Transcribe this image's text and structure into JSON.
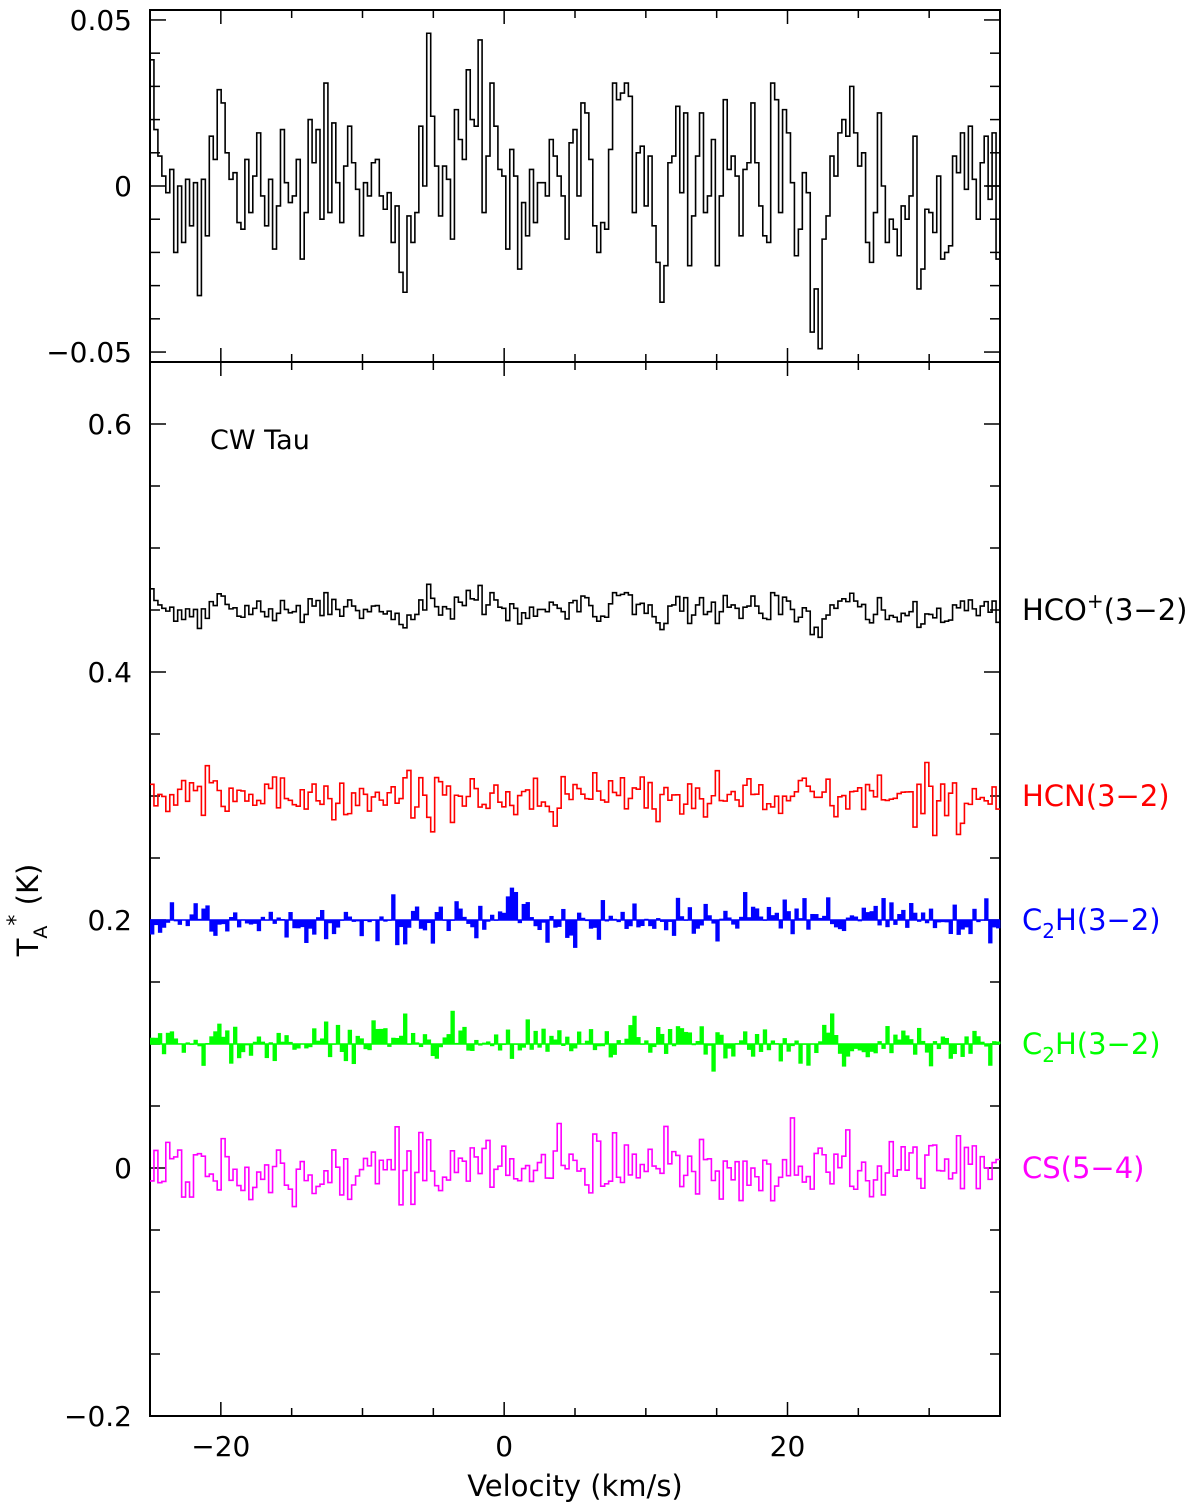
{
  "chart_data": [
    {
      "type": "line",
      "panel": "top",
      "style": "step",
      "xlim": [
        -25,
        35
      ],
      "ylim": [
        -0.053,
        0.053
      ],
      "y_ticks": [
        -0.05,
        0,
        0.05
      ],
      "y_tick_labels": [
        "−0.05",
        "0",
        "0.05"
      ],
      "series": [
        {
          "color": "#000000",
          "values": [
            0.038,
            0.017,
            0.009,
            0.003,
            -0.002,
            0.005,
            -0.02,
            0.0,
            -0.017,
            0.002,
            -0.012,
            0.001,
            -0.033,
            0.002,
            -0.015,
            0.015,
            0.008,
            0.029,
            0.025,
            0.01,
            0.002,
            0.004,
            -0.011,
            -0.013,
            0.008,
            -0.008,
            0.003,
            0.016,
            -0.003,
            -0.012,
            0.002,
            -0.019,
            -0.006,
            0.017,
            0.001,
            -0.005,
            -0.003,
            0.008,
            -0.022,
            -0.008,
            0.02,
            0.007,
            0.017,
            -0.01,
            0.031,
            -0.008,
            0.019,
            0.001,
            -0.011,
            0.006,
            0.018,
            0.007,
            -0.001,
            -0.015,
            0.001,
            -0.003,
            0.007,
            0.008,
            -0.003,
            -0.007,
            -0.002,
            -0.017,
            -0.006,
            -0.026,
            -0.032,
            -0.009,
            -0.017,
            -0.008,
            0.018,
            0.0,
            0.046,
            0.021,
            0.006,
            -0.009,
            0.006,
            0.002,
            -0.016,
            0.023,
            0.014,
            0.008,
            0.035,
            0.02,
            0.018,
            0.044,
            -0.008,
            0.009,
            0.031,
            0.018,
            0.005,
            0.003,
            -0.019,
            0.011,
            0.003,
            -0.025,
            -0.005,
            -0.015,
            0.005,
            -0.011,
            0.001,
            0.001,
            -0.003,
            0.014,
            0.009,
            0.003,
            -0.003,
            -0.016,
            0.013,
            0.017,
            -0.003,
            0.025,
            0.022,
            0.008,
            -0.012,
            -0.02,
            -0.011,
            -0.013,
            0.011,
            0.031,
            0.026,
            0.028,
            0.031,
            0.027,
            -0.008,
            0.01,
            0.012,
            -0.006,
            0.009,
            -0.012,
            -0.023,
            -0.035,
            -0.024,
            0.007,
            0.009,
            0.024,
            -0.002,
            0.022,
            -0.024,
            -0.009,
            0.009,
            0.022,
            -0.008,
            -0.003,
            0.014,
            -0.024,
            -0.003,
            0.026,
            0.005,
            0.009,
            0.003,
            -0.015,
            0.005,
            0.007,
            0.025,
            0.007,
            -0.006,
            -0.015,
            -0.017,
            0.031,
            0.026,
            -0.008,
            0.023,
            0.016,
            0.001,
            -0.021,
            -0.013,
            0.004,
            -0.002,
            -0.044,
            -0.031,
            -0.049,
            -0.016,
            -0.009,
            0.009,
            0.003,
            0.016,
            0.02,
            0.015,
            0.03,
            0.016,
            0.006,
            0.01,
            -0.017,
            -0.023,
            -0.008,
            0.022,
            0.0,
            -0.017,
            -0.01,
            -0.013,
            -0.021,
            -0.006,
            -0.01,
            -0.003,
            0.015,
            -0.031,
            -0.025,
            -0.007,
            -0.008,
            -0.014,
            0.003,
            -0.022,
            -0.02,
            -0.018,
            0.009,
            0.004,
            0.016,
            -0.001,
            0.018,
            0.002,
            -0.01,
            0.007,
            0.015,
            -0.004,
            0.016,
            -0.022
          ]
        }
      ]
    },
    {
      "type": "line",
      "panel": "bottom",
      "style": "step",
      "title": "",
      "xlabel": "Velocity (km/s)",
      "ylabel": "T_A^* (K)",
      "xlim": [
        -25,
        35
      ],
      "ylim": [
        -0.2,
        0.65
      ],
      "x_ticks": [
        -20,
        0,
        20
      ],
      "x_tick_labels": [
        "−20",
        "0",
        "20"
      ],
      "y_ticks": [
        -0.2,
        0,
        0.2,
        0.4,
        0.6
      ],
      "y_tick_labels": [
        "−0.2",
        "0",
        "0.2",
        "0.4",
        "0.6"
      ],
      "annotation": "CW Tau",
      "series": [
        {
          "name": "HCO+(3-2)",
          "color": "#000000",
          "offset": 0.45,
          "amplitude": 0.0185,
          "filled": false
        },
        {
          "name": "HCN(3-2)",
          "color": "#ff0000",
          "offset": 0.3,
          "amplitude": 0.016,
          "filled": false
        },
        {
          "name": "C2H(3-2)",
          "color": "#0000ff",
          "offset": 0.2,
          "amplitude": 0.017,
          "filled": true
        },
        {
          "name": "C2H(3-2)",
          "color": "#00ff00",
          "offset": 0.1,
          "amplitude": 0.016,
          "filled": true
        },
        {
          "name": "CS(5-4)",
          "color": "#ff00ff",
          "offset": 0.0,
          "amplitude": 0.023,
          "filled": false
        }
      ],
      "series_labels": [
        {
          "main": "HCO",
          "sup": "+",
          "rest": "(3−2)",
          "color": "#000000"
        },
        {
          "main": "HCN(3−2)",
          "color": "#ff0000"
        },
        {
          "main": "C",
          "sub": "2",
          "rest": "H(3−2)",
          "color": "#0000ff"
        },
        {
          "main": "C",
          "sub": "2",
          "rest": "H(3−2)",
          "color": "#00ff00"
        },
        {
          "main": "CS(5−4)",
          "color": "#ff00ff"
        }
      ]
    }
  ]
}
